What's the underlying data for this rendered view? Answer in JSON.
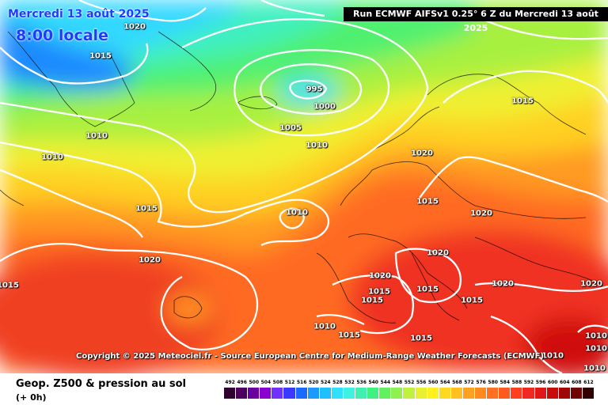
{
  "header": {
    "run_info": "Run ECMWF AIFSv1 0.25° 6 Z du Mercredi 13 août 2025",
    "date": "Mercredi 13 août 2025",
    "local_time": "8:00 locale"
  },
  "copyright": "Copyright © 2025 Meteociel.fr - Source European Centre for Medium-Range Weather Forecasts (ECMWF)",
  "isobar_labels": [
    "1020",
    "1015",
    "995",
    "1000",
    "1015",
    "1005",
    "1010",
    "1010",
    "1010",
    "1020",
    "1015",
    "1015",
    "1010",
    "1020",
    "1015",
    "1020",
    "1020",
    "1020",
    "1015",
    "1015",
    "1015",
    "1020",
    "1015",
    "1020",
    "1010",
    "1015",
    "1010",
    "1015",
    "1010",
    "1010",
    "1010"
  ],
  "legend": {
    "title": "Geop. Z500 & pression au sol",
    "subtitle": "(+ 0h)",
    "scale_values": [
      "492",
      "496",
      "500",
      "504",
      "508",
      "512",
      "516",
      "520",
      "524",
      "528",
      "532",
      "536",
      "540",
      "544",
      "548",
      "552",
      "556",
      "560",
      "564",
      "568",
      "572",
      "576",
      "580",
      "584",
      "588",
      "592",
      "596",
      "600",
      "604",
      "608",
      "612"
    ],
    "scale_colors": [
      "#300030",
      "#4b0060",
      "#6a00a0",
      "#8a00d0",
      "#7030ff",
      "#3a3aff",
      "#1a6aff",
      "#1a9aff",
      "#20c0ff",
      "#30e0ff",
      "#40f0e0",
      "#40f0b0",
      "#40f080",
      "#60f060",
      "#90f050",
      "#c0f040",
      "#e8f030",
      "#fff020",
      "#ffd820",
      "#ffc020",
      "#ffa020",
      "#ff8a20",
      "#ff7020",
      "#ff5a20",
      "#ff4020",
      "#f02a20",
      "#e01818",
      "#c80c0c",
      "#a00808",
      "#700404",
      "#300000"
    ]
  }
}
